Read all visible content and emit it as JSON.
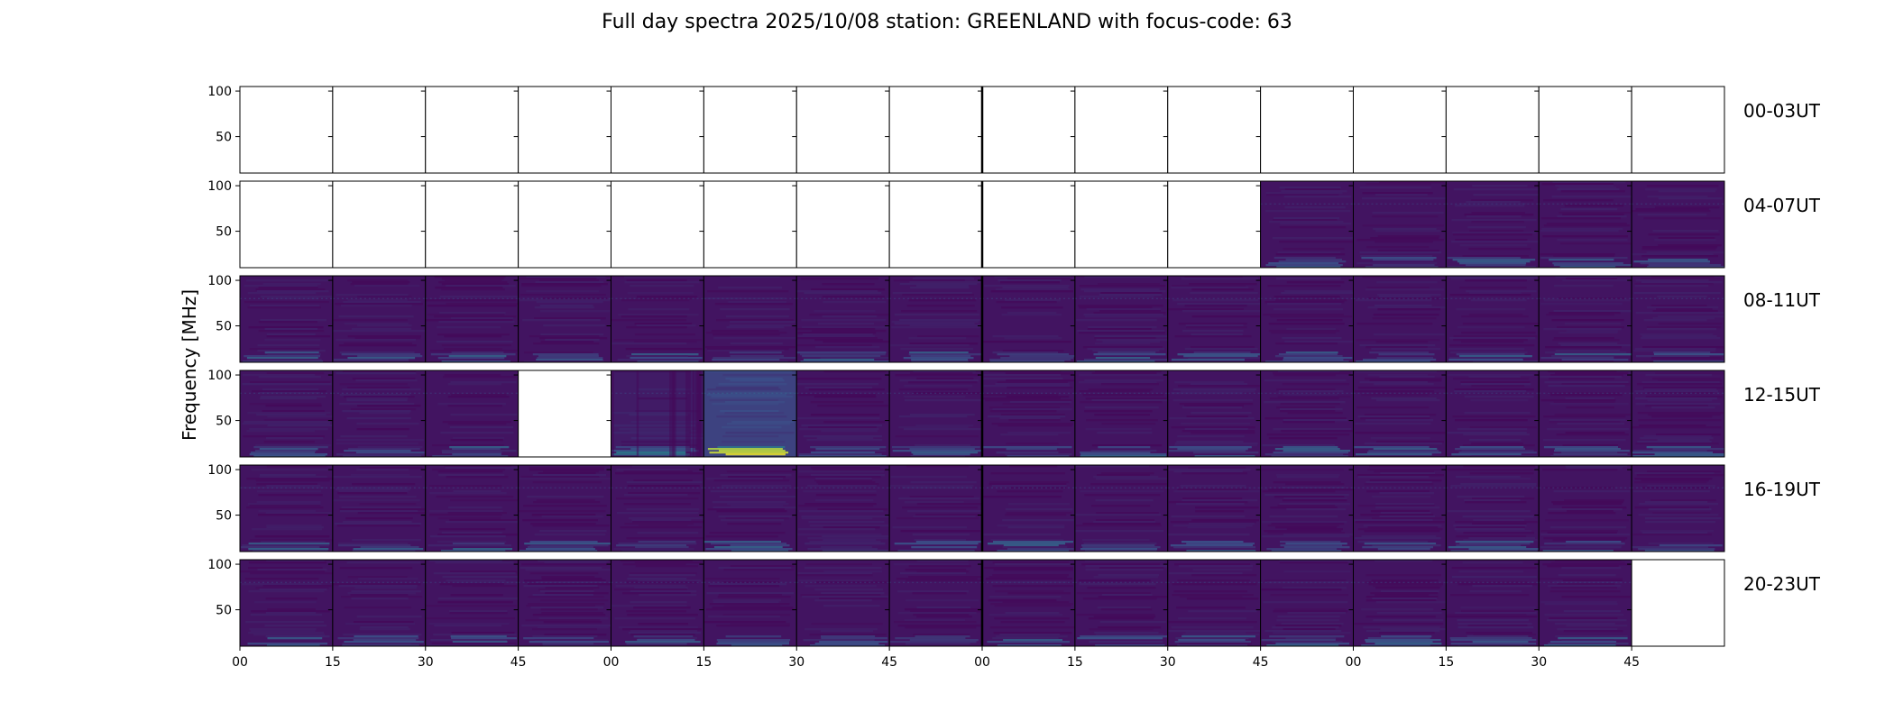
{
  "chart_data": {
    "type": "heatmap",
    "title": "Full day spectra 2025/10/08 station: GREENLAND with focus-code: 63",
    "ylabel": "Frequency [MHz]",
    "xlabel": "",
    "ylim": [
      10,
      105
    ],
    "yticks": [
      50,
      100
    ],
    "xtick_labels": [
      "00",
      "15",
      "30",
      "45",
      "00",
      "15",
      "30",
      "45",
      "00",
      "15",
      "30",
      "45",
      "00",
      "15",
      "30",
      "45"
    ],
    "colormap": "viridis",
    "grid": false,
    "panel_minutes": 15,
    "rows": [
      {
        "label": "00-03UT",
        "panels": [
          "empty",
          "empty",
          "empty",
          "empty",
          "empty",
          "empty",
          "empty",
          "empty",
          "empty",
          "empty",
          "empty",
          "empty",
          "empty",
          "empty",
          "empty",
          "empty"
        ]
      },
      {
        "label": "04-07UT",
        "panels": [
          "empty",
          "empty",
          "empty",
          "empty",
          "empty",
          "empty",
          "empty",
          "empty",
          "empty",
          "empty",
          "empty",
          "data",
          "data",
          "data",
          "data",
          "data"
        ]
      },
      {
        "label": "08-11UT",
        "panels": [
          "data",
          "data",
          "data",
          "data",
          "data",
          "data",
          "data",
          "data",
          "data",
          "data",
          "data",
          "data",
          "data",
          "data",
          "data",
          "data"
        ]
      },
      {
        "label": "12-15UT",
        "panels": [
          "data",
          "data",
          "data",
          "empty",
          "elevated",
          "burst",
          "data",
          "data",
          "data",
          "data",
          "data",
          "data",
          "data",
          "data",
          "data",
          "data"
        ]
      },
      {
        "label": "16-19UT",
        "panels": [
          "data",
          "data",
          "data",
          "data",
          "data",
          "data",
          "data",
          "data",
          "data",
          "data",
          "data",
          "data",
          "data",
          "data",
          "data",
          "data"
        ]
      },
      {
        "label": "20-23UT",
        "panels": [
          "data",
          "data",
          "data",
          "data",
          "data",
          "data",
          "data",
          "data",
          "data",
          "data",
          "data",
          "data",
          "data",
          "data",
          "data",
          "empty"
        ]
      }
    ]
  },
  "colors": {
    "background_low": "#440154",
    "mid": "#3b528b",
    "teal": "#21918c",
    "green": "#5ec962",
    "high": "#fde725"
  }
}
